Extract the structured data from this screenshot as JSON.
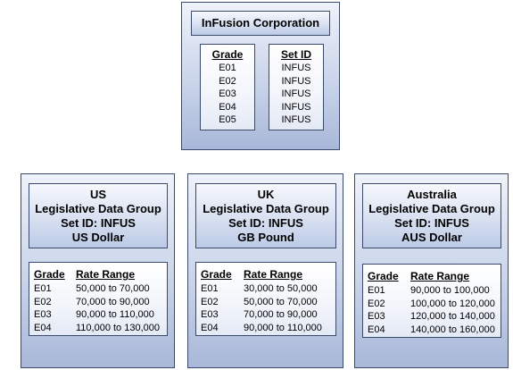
{
  "corporation": {
    "title": "InFusion Corporation",
    "grade_header": "Grade",
    "setid_header": "Set ID",
    "rows": [
      {
        "grade": "E01",
        "setid": "INFUS"
      },
      {
        "grade": "E02",
        "setid": "INFUS"
      },
      {
        "grade": "E03",
        "setid": "INFUS"
      },
      {
        "grade": "E04",
        "setid": "INFUS"
      },
      {
        "grade": "E05",
        "setid": "INFUS"
      }
    ]
  },
  "groups": [
    {
      "country": "US",
      "ldg": "Legislative Data Group",
      "setid": "Set ID: INFUS",
      "currency": "US Dollar",
      "grade_header": "Grade",
      "rate_header": "Rate Range",
      "rows": [
        {
          "grade": "E01",
          "rate": "50,000 to 70,000"
        },
        {
          "grade": "E02",
          "rate": "70,000 to 90,000"
        },
        {
          "grade": "E03",
          "rate": "90,000 to 110,000"
        },
        {
          "grade": "E04",
          "rate": "110,000 to 130,000"
        }
      ]
    },
    {
      "country": "UK",
      "ldg": "Legislative Data Group",
      "setid": "Set ID: INFUS",
      "currency": "GB Pound",
      "grade_header": "Grade",
      "rate_header": "Rate Range",
      "rows": [
        {
          "grade": "E01",
          "rate": "30,000 to 50,000"
        },
        {
          "grade": "E02",
          "rate": "50,000 to 70,000"
        },
        {
          "grade": "E03",
          "rate": "70,000 to 90,000"
        },
        {
          "grade": "E04",
          "rate": "90,000 to 110,000"
        }
      ]
    },
    {
      "country": "Australia",
      "ldg": "Legislative Data Group",
      "setid": "Set ID: INFUS",
      "currency": "AUS Dollar",
      "grade_header": "Grade",
      "rate_header": "Rate Range",
      "rows": [
        {
          "grade": "E01",
          "rate": "90,000 to 100,000"
        },
        {
          "grade": "E02",
          "rate": "100,000 to 120,000"
        },
        {
          "grade": "E03",
          "rate": "120,000 to 140,000"
        },
        {
          "grade": "E04",
          "rate": "140,000 to 160,000"
        }
      ]
    }
  ]
}
